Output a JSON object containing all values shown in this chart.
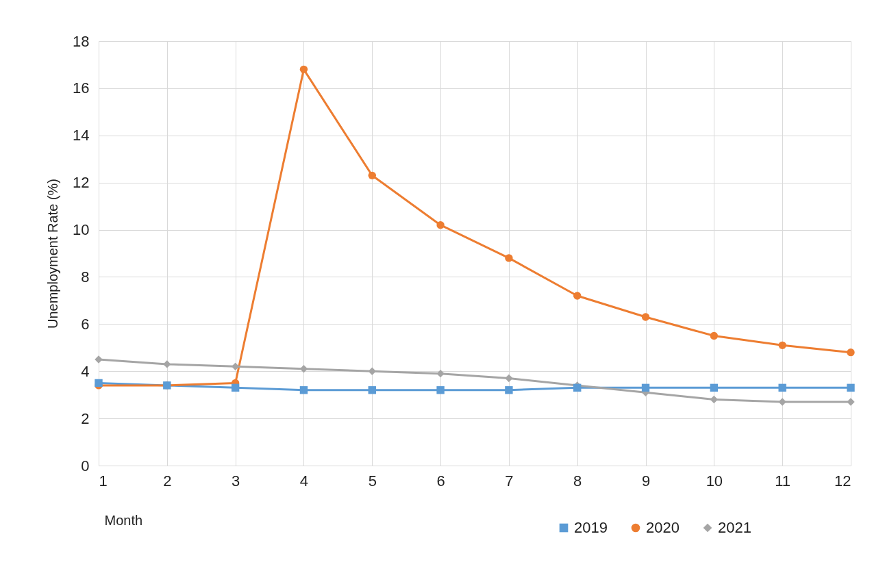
{
  "chart_data": {
    "type": "line",
    "xlabel": "Month",
    "ylabel": "Unemployment Rate (%)",
    "x": [
      1,
      2,
      3,
      4,
      5,
      6,
      7,
      8,
      9,
      10,
      11,
      12
    ],
    "series": [
      {
        "name": "2019",
        "color": "#5b9bd5",
        "marker": "square",
        "values": [
          3.5,
          3.4,
          3.3,
          3.2,
          3.2,
          3.2,
          3.2,
          3.3,
          3.3,
          3.3,
          3.3,
          3.3
        ]
      },
      {
        "name": "2020",
        "color": "#ed7d31",
        "marker": "circle",
        "values": [
          3.4,
          3.4,
          3.5,
          16.8,
          12.3,
          10.2,
          8.8,
          7.2,
          6.3,
          5.5,
          5.1,
          4.8
        ]
      },
      {
        "name": "2021",
        "color": "#a5a5a5",
        "marker": "diamond",
        "values": [
          4.5,
          4.3,
          4.2,
          4.1,
          4.0,
          3.9,
          3.7,
          3.4,
          3.1,
          2.8,
          2.7,
          2.7
        ]
      }
    ],
    "xlim": [
      1,
      12
    ],
    "xticks": [
      1,
      2,
      3,
      4,
      5,
      6,
      7,
      8,
      9,
      10,
      11,
      12
    ],
    "ylim": [
      0,
      18
    ],
    "yticks": [
      0,
      2,
      4,
      6,
      8,
      10,
      12,
      14,
      16,
      18
    ],
    "grid": true,
    "legend": "bottom right",
    "line_style": "solid"
  }
}
